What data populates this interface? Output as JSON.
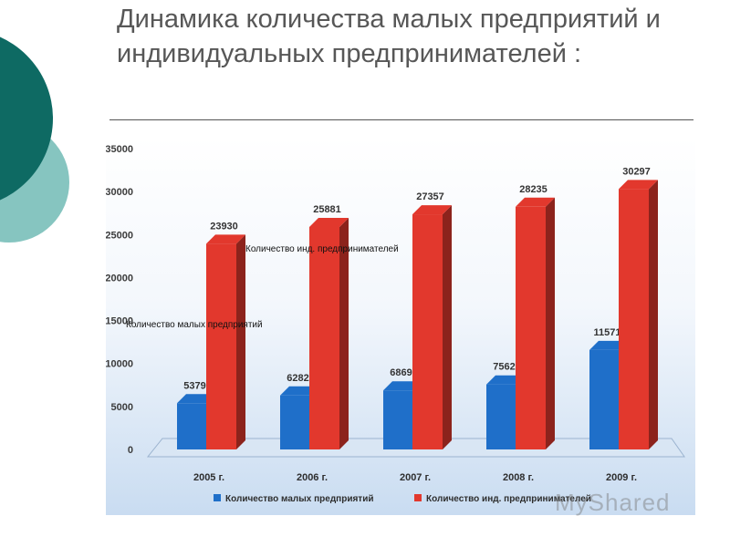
{
  "slide": {
    "title": "Динамика количества малых предприятий и индивидуальных предпринимателей :"
  },
  "watermark": "MyShared",
  "colors": {
    "teal_dark": "#0e6a63",
    "teal_light": "#86c5c0",
    "series_blue": "#1f6fc9",
    "series_red": "#e2382d"
  },
  "chart_data": {
    "type": "bar",
    "categories": [
      "2005 г.",
      "2006 г.",
      "2007 г.",
      "2008 г.",
      "2009 г."
    ],
    "series": [
      {
        "name": "Количество малых предприятий",
        "values": [
          5379,
          6282,
          6869,
          7562,
          11571
        ],
        "color": "#1f6fc9"
      },
      {
        "name": "Количество инд. предпринимателей",
        "values": [
          23930,
          25881,
          27357,
          28235,
          30297
        ],
        "color": "#e2382d"
      }
    ],
    "ylim": [
      0,
      35000
    ],
    "yticks": [
      "35000",
      "30000",
      "25000",
      "20000",
      "15000",
      "10000",
      "5000",
      "0"
    ],
    "data_labels": {
      "small": [
        "5379",
        "6282",
        "6869",
        "7562",
        "11571"
      ],
      "ip": [
        "23930",
        "25881",
        "27357",
        "28235",
        "30297"
      ]
    },
    "annotations": [
      "Количество инд. предпринимателей",
      "Количество малых предприятий"
    ],
    "legend_position": "bottom",
    "grid": false
  }
}
